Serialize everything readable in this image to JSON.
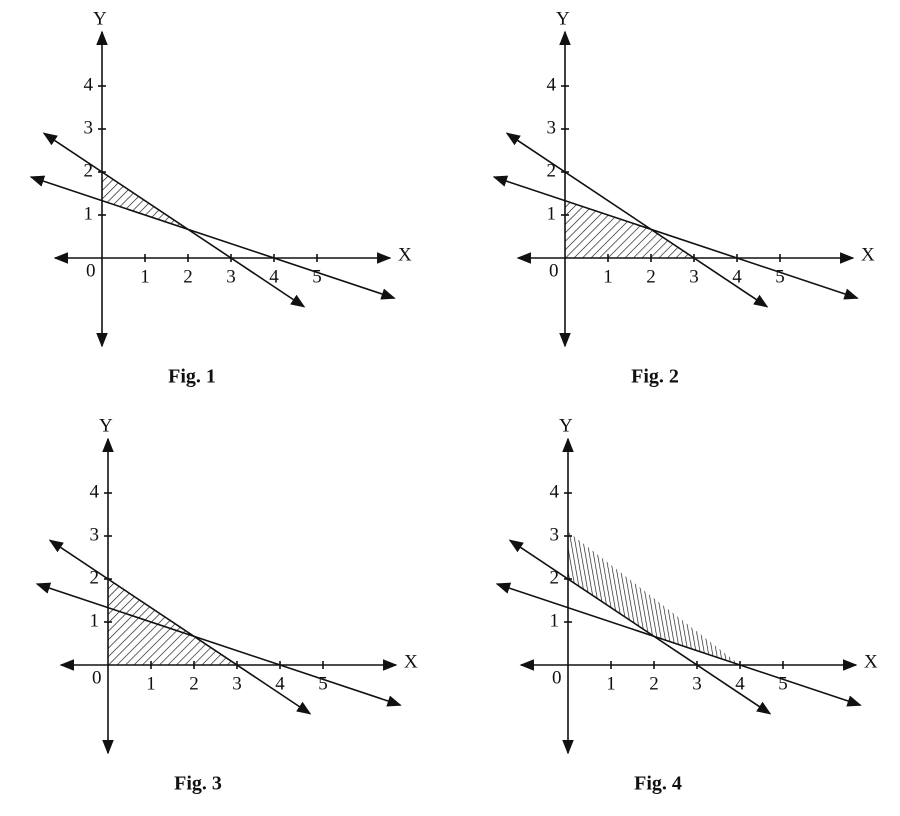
{
  "figures": [
    {
      "caption": "Fig. 1",
      "x_label": "X",
      "y_label": "Y",
      "origin": 0,
      "x_ticks": [
        1,
        2,
        3,
        4,
        5
      ],
      "y_ticks": [
        1,
        2,
        3,
        4
      ]
    },
    {
      "caption": "Fig. 2",
      "x_label": "X",
      "y_label": "Y",
      "origin": 0,
      "x_ticks": [
        1,
        2,
        3,
        4,
        5
      ],
      "y_ticks": [
        1,
        2,
        3,
        4
      ]
    },
    {
      "caption": "Fig. 3",
      "x_label": "X",
      "y_label": "Y",
      "origin": 0,
      "x_ticks": [
        1,
        2,
        3,
        4,
        5
      ],
      "y_ticks": [
        1,
        2,
        3,
        4
      ]
    },
    {
      "caption": "Fig. 4",
      "x_label": "X",
      "y_label": "Y",
      "origin": 0,
      "x_ticks": [
        1,
        2,
        3,
        4,
        5
      ],
      "y_ticks": [
        1,
        2,
        3,
        4
      ]
    }
  ]
}
